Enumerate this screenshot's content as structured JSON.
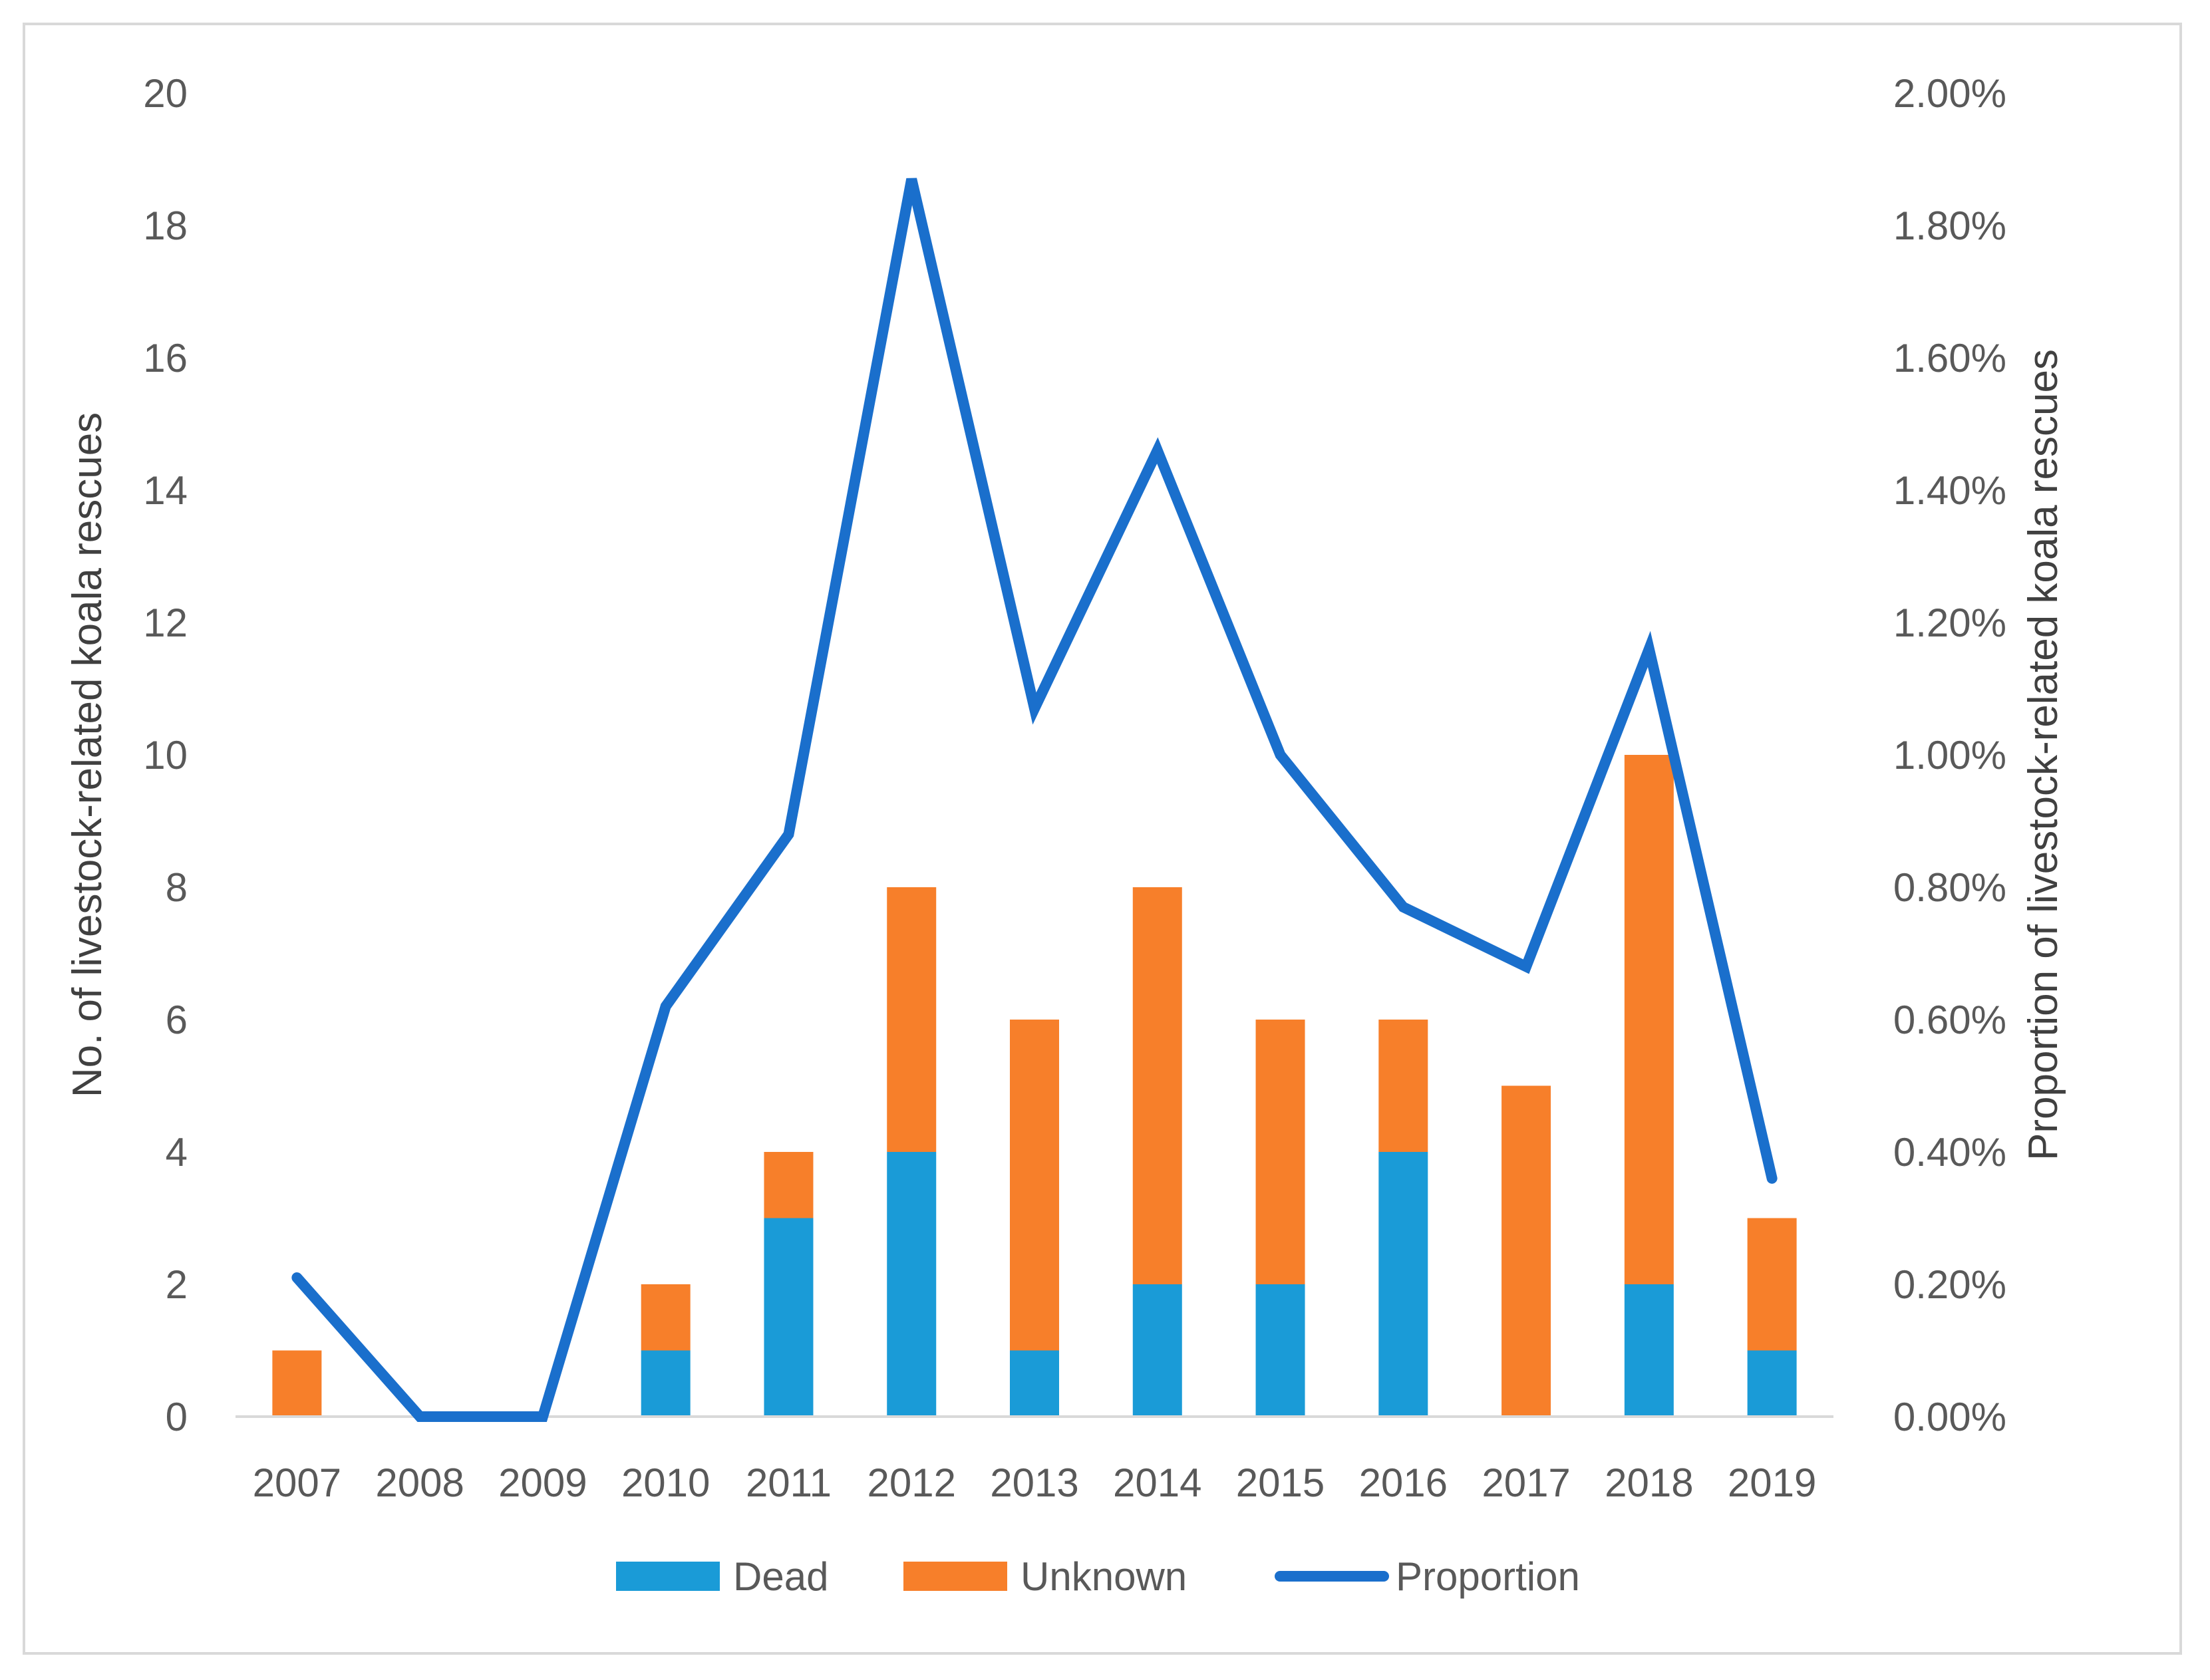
{
  "chart_data": {
    "type": "bar",
    "stacked": true,
    "title": "",
    "categories": [
      "2007",
      "2008",
      "2009",
      "2010",
      "2011",
      "2012",
      "2013",
      "2014",
      "2015",
      "2016",
      "2017",
      "2018",
      "2019"
    ],
    "series": [
      {
        "name": "Dead",
        "type": "bar",
        "axis": "left",
        "color": "#1a9bd7",
        "values": [
          0,
          0,
          0,
          1,
          3,
          4,
          1,
          2,
          2,
          4,
          0,
          2,
          1
        ]
      },
      {
        "name": "Unknown",
        "type": "bar",
        "axis": "left",
        "color": "#f77f2a",
        "values": [
          1,
          0,
          0,
          1,
          1,
          4,
          5,
          6,
          4,
          2,
          5,
          8,
          2
        ]
      },
      {
        "name": "Proportion",
        "type": "line",
        "axis": "right",
        "color": "#1a6fcc",
        "values": [
          0.0021,
          0,
          0,
          0.0062,
          0.0088,
          0.0187,
          0.0107,
          0.0146,
          0.01,
          0.0077,
          0.0068,
          0.0116,
          0.0036
        ]
      }
    ],
    "ylabel": "No. of livestock-related  koala rescues",
    "y2label": "Proportion of livestock-related koala rescues",
    "ylim": [
      0,
      20
    ],
    "y2lim": [
      0,
      0.02
    ],
    "yticks": [
      "0",
      "2",
      "4",
      "6",
      "8",
      "10",
      "12",
      "14",
      "16",
      "18",
      "20"
    ],
    "y2ticks": [
      "0.00%",
      "0.20%",
      "0.40%",
      "0.60%",
      "0.80%",
      "1.00%",
      "1.20%",
      "1.40%",
      "1.60%",
      "1.80%",
      "2.00%"
    ],
    "legend": [
      "Dead",
      "Unknown",
      "Proportion"
    ],
    "legend_position": "bottom"
  }
}
